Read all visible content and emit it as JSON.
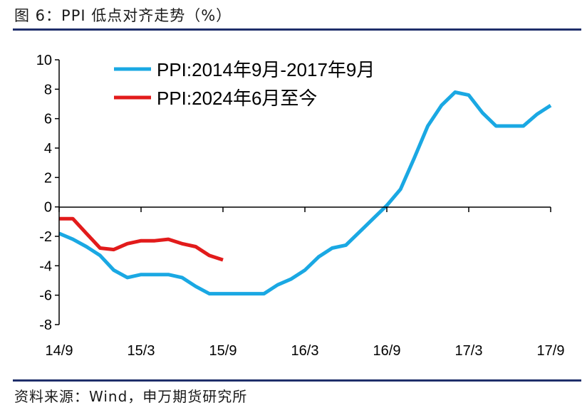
{
  "header": {
    "title": "图 6：PPI 低点对齐走势（%）"
  },
  "footer": {
    "source": "资料来源：Wind，申万期货研究所"
  },
  "colors": {
    "rule": "#1f2f6b",
    "series_blue": "#1aa8e3",
    "series_red": "#e21b1b",
    "axis": "#000000"
  },
  "chart_data": {
    "type": "line",
    "title": "",
    "xlabel": "",
    "ylabel": "",
    "ylim": [
      -8,
      10
    ],
    "yticks": [
      10,
      8,
      6,
      4,
      2,
      0,
      -2,
      -4,
      -6,
      -8
    ],
    "xlim": [
      0,
      36
    ],
    "xticks": [
      {
        "pos": 0,
        "label": "14/9"
      },
      {
        "pos": 6,
        "label": "15/3"
      },
      {
        "pos": 12,
        "label": "15/9"
      },
      {
        "pos": 18,
        "label": "16/3"
      },
      {
        "pos": 24,
        "label": "16/9"
      },
      {
        "pos": 30,
        "label": "17/3"
      },
      {
        "pos": 36,
        "label": "17/9"
      }
    ],
    "grid": false,
    "legend_position": "top-center",
    "series": [
      {
        "name": "PPI:2014年9月-2017年9月",
        "color": "#1aa8e3",
        "values": [
          -1.8,
          -2.2,
          -2.7,
          -3.3,
          -4.3,
          -4.8,
          -4.6,
          -4.6,
          -4.6,
          -4.8,
          -5.4,
          -5.9,
          -5.9,
          -5.9,
          -5.9,
          -5.9,
          -5.3,
          -4.9,
          -4.3,
          -3.4,
          -2.8,
          -2.6,
          -1.7,
          -0.8,
          0.1,
          1.2,
          3.3,
          5.5,
          6.9,
          7.8,
          7.6,
          6.4,
          5.5,
          5.5,
          5.5,
          6.3,
          6.9
        ]
      },
      {
        "name": "PPI:2024年6月至今",
        "color": "#e21b1b",
        "values": [
          -0.8,
          -0.8,
          -1.8,
          -2.8,
          -2.9,
          -2.5,
          -2.3,
          -2.3,
          -2.2,
          -2.5,
          -2.7,
          -3.3,
          -3.6
        ]
      }
    ]
  }
}
